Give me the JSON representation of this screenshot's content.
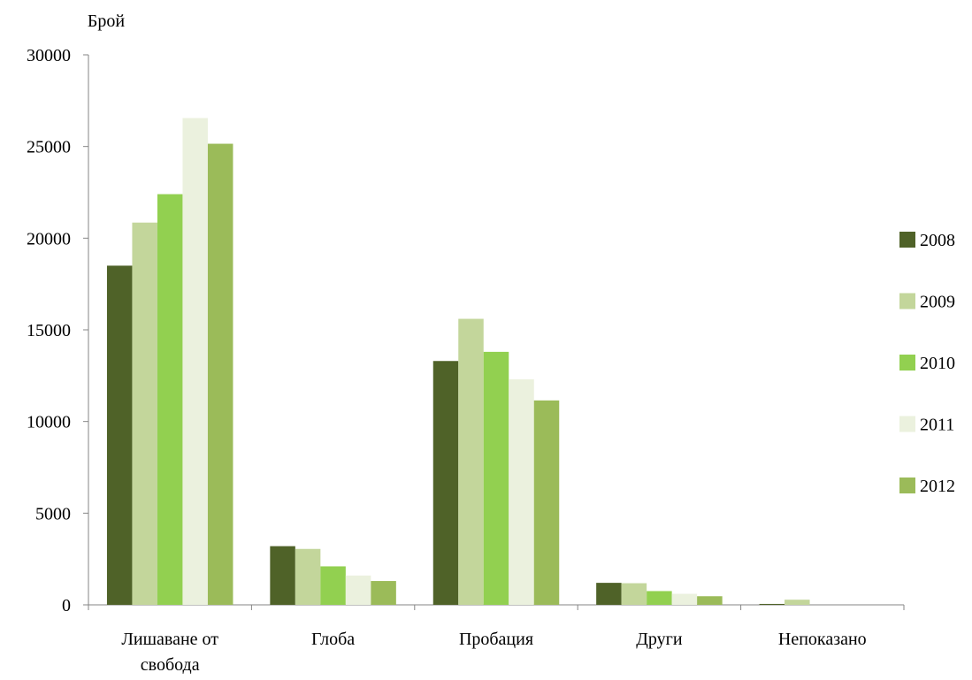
{
  "chart_data": {
    "type": "bar",
    "ylabel": "Брой",
    "ylim": [
      0,
      30000
    ],
    "y_ticks": [
      0,
      5000,
      10000,
      15000,
      20000,
      25000,
      30000
    ],
    "y_tick_labels": [
      "0",
      "5000",
      "10000",
      "15000",
      "20000",
      "25000",
      "30000"
    ],
    "categories": [
      [
        "Лишаване от",
        "свобода"
      ],
      [
        "Глоба"
      ],
      [
        "Пробация"
      ],
      [
        "Други"
      ],
      [
        "Непоказано"
      ]
    ],
    "legend_position": "right",
    "grid": false,
    "series": [
      {
        "name": "2008",
        "color": "#4f6228",
        "values": [
          18500,
          3200,
          13300,
          1200,
          50
        ]
      },
      {
        "name": "2009",
        "color": "#c3d69b",
        "values": [
          20850,
          3050,
          15600,
          1180,
          280
        ]
      },
      {
        "name": "2010",
        "color": "#92d050",
        "values": [
          22400,
          2100,
          13800,
          750,
          0
        ]
      },
      {
        "name": "2011",
        "color": "#ebf1de",
        "values": [
          26550,
          1600,
          12300,
          600,
          0
        ]
      },
      {
        "name": "2012",
        "color": "#9bbb59",
        "values": [
          25150,
          1300,
          11150,
          470,
          0
        ]
      }
    ]
  }
}
